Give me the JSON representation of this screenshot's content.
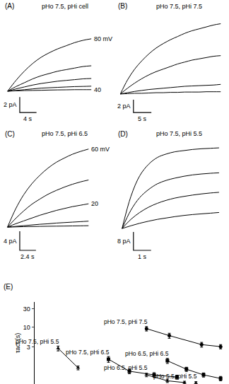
{
  "chart_data": [
    {
      "type": "line",
      "title": "(A)",
      "subtitle": "pHo 7.5, pHi cell",
      "x": [
        0,
        2,
        4,
        6,
        8,
        10,
        12,
        14,
        16,
        18,
        20
      ],
      "series": [
        {
          "name": "80 mV",
          "color": "#000000",
          "values": [
            0,
            1.4,
            2.6,
            3.6,
            4.4,
            5.0,
            5.5,
            5.9,
            6.3,
            6.6,
            6.8
          ]
        },
        {
          "color": "#000000",
          "values": [
            0,
            0.6,
            1.1,
            1.6,
            2.0,
            2.3,
            2.6,
            2.8,
            3.0,
            3.2,
            3.3
          ]
        },
        {
          "color": "#000000",
          "values": [
            0,
            0.3,
            0.55,
            0.8,
            1.0,
            1.15,
            1.3,
            1.4,
            1.5,
            1.6,
            1.65
          ]
        },
        {
          "color": "#000000",
          "values": [
            0,
            0.1,
            0.2,
            0.3,
            0.4,
            0.45,
            0.5,
            0.55,
            0.6,
            0.62,
            0.65
          ]
        },
        {
          "name": "40",
          "color": "#000000",
          "values": [
            0,
            0.05,
            0.08,
            0.1,
            0.12,
            0.15,
            0.17,
            0.18,
            0.2,
            0.2,
            0.2
          ]
        }
      ],
      "xlim": [
        -1,
        25
      ],
      "ylim": [
        -4.5,
        10
      ],
      "scale_bar": {
        "x": 4,
        "y": 2,
        "x_label": "4 s",
        "y_label": "2 pA"
      },
      "tick_labels": false,
      "grid": false
    },
    {
      "type": "line",
      "title": "(B)",
      "subtitle": "pHo 7.5, pHi 7.5",
      "x": [
        0,
        2,
        4,
        6,
        8,
        10,
        12,
        14,
        16,
        18,
        20,
        22,
        24,
        26,
        28
      ],
      "series": [
        {
          "color": "#000000",
          "values": [
            0,
            2.2,
            3.9,
            5.2,
            6.3,
            7.2,
            7.9,
            8.5,
            9.0,
            9.5,
            9.9,
            10.2,
            10.5,
            10.8,
            11.0
          ]
        },
        {
          "color": "#000000",
          "values": [
            0,
            0.9,
            1.7,
            2.4,
            3.0,
            3.5,
            3.9,
            4.3,
            4.7,
            5.0,
            5.3,
            5.5,
            5.7,
            5.9,
            6.0
          ]
        },
        {
          "color": "#000000",
          "values": [
            0,
            0.2,
            0.4,
            0.55,
            0.7,
            0.8,
            0.9,
            1.0,
            1.1,
            1.2,
            1.25,
            1.3,
            1.35,
            1.4,
            1.5
          ]
        },
        {
          "color": "#000000",
          "values": [
            0,
            0.05,
            0.1,
            0.1,
            0.15,
            0.2,
            0.2,
            0.25,
            0.25,
            0.3,
            0.3,
            0.3,
            0.35,
            0.35,
            0.35
          ]
        }
      ],
      "xlim": [
        -1,
        30
      ],
      "ylim": [
        -5,
        12.5
      ],
      "scale_bar": {
        "x": 5,
        "y": 2,
        "x_label": "5 s",
        "y_label": "2 pA"
      },
      "tick_labels": false,
      "grid": false
    },
    {
      "type": "line",
      "title": "(C)",
      "subtitle": "pHo 7.5, pHi 6.5",
      "x": [
        0,
        1.2,
        2.4,
        3.6,
        4.8,
        6.0,
        7.2,
        8.4,
        9.6,
        10.8,
        12.0
      ],
      "series": [
        {
          "name": "60 mV",
          "color": "#000000",
          "values": [
            0,
            3.8,
            6.8,
            9.1,
            10.9,
            12.4,
            13.6,
            14.5,
            15.3,
            15.9,
            16.4
          ]
        },
        {
          "color": "#000000",
          "values": [
            0,
            1.8,
            3.4,
            4.8,
            5.9,
            6.9,
            7.7,
            8.4,
            9.0,
            9.5,
            9.9
          ]
        },
        {
          "name": "20",
          "color": "#000000",
          "values": [
            0,
            0.7,
            1.3,
            1.9,
            2.5,
            3.0,
            3.5,
            3.9,
            4.3,
            4.6,
            4.9
          ]
        },
        {
          "color": "#000000",
          "values": [
            0,
            0.15,
            0.3,
            0.45,
            0.6,
            0.7,
            0.85,
            0.95,
            1.05,
            1.15,
            1.25
          ]
        },
        {
          "color": "#000000",
          "values": [
            0,
            0.05,
            0.1,
            0.12,
            0.15,
            0.18,
            0.2,
            0.22,
            0.25,
            0.27,
            0.3
          ]
        }
      ],
      "xlim": [
        -0.6,
        15.5
      ],
      "ylim": [
        -8,
        18
      ],
      "scale_bar": {
        "x": 2.4,
        "y": 4,
        "x_label": "2.4 s",
        "y_label": "4 pA"
      },
      "tick_labels": false,
      "grid": false
    },
    {
      "type": "line",
      "title": "(D)",
      "subtitle": "pHo 7.5, pHi 5.5",
      "x": [
        0,
        0.5,
        1.0,
        1.5,
        2.0,
        2.5,
        3.0,
        3.5,
        4.0,
        4.5,
        5.0,
        5.5
      ],
      "series": [
        {
          "color": "#000000",
          "values": [
            0,
            14,
            23,
            28,
            31,
            32.5,
            33.5,
            34,
            34.5,
            34.8,
            35,
            35.2
          ]
        },
        {
          "color": "#000000",
          "values": [
            0,
            8,
            13.5,
            17,
            19.5,
            21,
            22,
            22.8,
            23.4,
            23.8,
            24.1,
            24.3
          ]
        },
        {
          "color": "#000000",
          "values": [
            0,
            4,
            7,
            9.3,
            11,
            12.3,
            13.3,
            14,
            14.6,
            15.1,
            15.5,
            15.8
          ]
        },
        {
          "color": "#000000",
          "values": [
            0,
            1.2,
            2.3,
            3.2,
            4,
            4.6,
            5.2,
            5.7,
            6.1,
            6.4,
            6.7,
            7
          ]
        }
      ],
      "xlim": [
        -0.3,
        6
      ],
      "ylim": [
        -16,
        38
      ],
      "scale_bar": {
        "x": 1,
        "y": 8,
        "x_label": "1 s",
        "y_label": "8 pA"
      },
      "tick_labels": false,
      "grid": false
    },
    {
      "type": "scatter",
      "title": "(E)",
      "y_label": "τact (s)",
      "series": [
        {
          "name": "pHo 7.5, pHi 7.5",
          "color": "#000000",
          "marker": "circle",
          "x": [
            59,
            71,
            88,
            98
          ],
          "values": [
            9.1,
            6.0,
            3.5,
            3.1
          ],
          "error": [
            1.2,
            0.9,
            0.5,
            0.4
          ]
        },
        {
          "name": "pHo 7.5, pHi 6.5",
          "color": "#000000",
          "marker": "square",
          "x": [
            39,
            50,
            63,
            75
          ],
          "values": [
            1.46,
            0.71,
            0.57,
            0.5
          ],
          "error": [
            0.25,
            0.1,
            0.08,
            0.06
          ]
        },
        {
          "name": "pHo 6.5, pHi 6.5",
          "color": "#000000",
          "marker": "square",
          "x": [
            70,
            80,
            89,
            98
          ],
          "values": [
            1.33,
            0.8,
            0.57,
            0.46
          ],
          "error": [
            0.2,
            0.1,
            0.07,
            0.06
          ]
        },
        {
          "name": "pHo 6.5, pHi 5.5",
          "color": "#000000",
          "marker": "triangle",
          "x": [
            59,
            70,
            79
          ],
          "values": [
            0.57,
            0.4,
            0.36
          ],
          "error": [
            0.06,
            0.04,
            0.03
          ]
        },
        {
          "name": "pHo 7.5, pHi 5.5",
          "color": "#000000",
          "marker": "triangle",
          "x": [
            12.5,
            23
          ],
          "values": [
            2.8,
            0.87
          ],
          "error": [
            0.4,
            0.1
          ]
        },
        {
          "name": "pHo 5.5, pHi 5.5",
          "color": "#000000",
          "marker": "triangle",
          "x": [
            85
          ],
          "values": [
            0.35
          ],
          "error": [
            0.03
          ]
        }
      ],
      "xlim": [
        0,
        100
      ],
      "ylim": [
        0.33,
        45
      ],
      "yticks": [
        3,
        10,
        30
      ],
      "log": "y",
      "tick_labels": "y",
      "grid": false
    }
  ]
}
